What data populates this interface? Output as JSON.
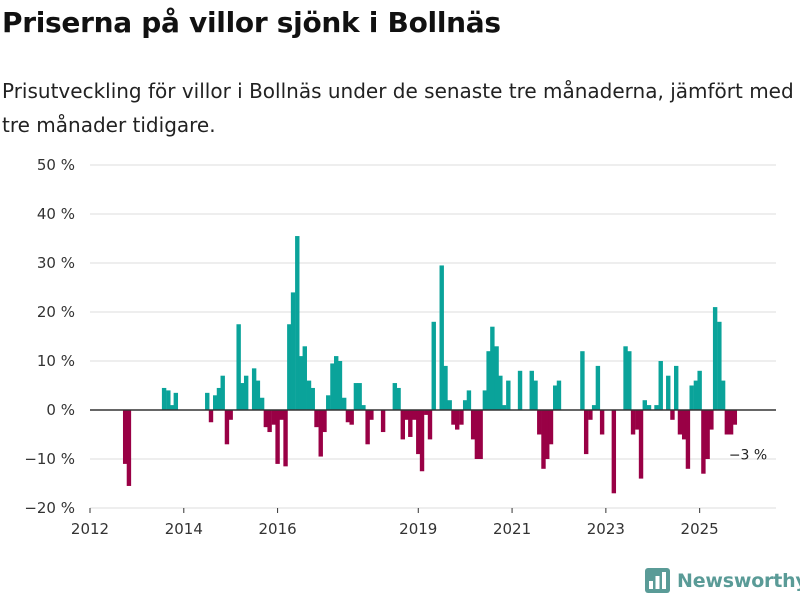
{
  "header": {
    "title": "Priserna på villor sjönk i Bollnäs",
    "subtitle": "Prisutveckling för villor i Bollnäs under de senaste tre månaderna, jämfört med tre månader tidigare."
  },
  "brand": {
    "name": "Newsworthy"
  },
  "colors": {
    "positive": "#0aa39a",
    "negative": "#990045",
    "grid": "#dddddd",
    "zero": "#333333",
    "brand": "#5a9b97"
  },
  "chart_data": {
    "type": "bar",
    "title": "Priserna på villor sjönk i Bollnäs",
    "xlabel": "",
    "ylabel": "",
    "ylim": [
      -20,
      50
    ],
    "yticks": [
      {
        "value": 50,
        "label": "50 %"
      },
      {
        "value": 40,
        "label": "40 %"
      },
      {
        "value": 30,
        "label": "30 %"
      },
      {
        "value": 20,
        "label": "20 %"
      },
      {
        "value": 10,
        "label": "10 %"
      },
      {
        "value": 0,
        "label": "0 %"
      },
      {
        "value": -10,
        "label": "−10 %"
      },
      {
        "value": -20,
        "label": "−20 %"
      }
    ],
    "xlim": [
      2012.0,
      2026.5
    ],
    "xticks": [
      {
        "value": 2012,
        "label": "2012"
      },
      {
        "value": 2014,
        "label": "2014"
      },
      {
        "value": 2016,
        "label": "2016"
      },
      {
        "value": 2019,
        "label": "2019"
      },
      {
        "value": 2021,
        "label": "2021"
      },
      {
        "value": 2023,
        "label": "2023"
      },
      {
        "value": 2025,
        "label": "2025"
      }
    ],
    "annotation": {
      "x": 2025.75,
      "value": -3,
      "label": "−3 %"
    },
    "points": [
      {
        "x": 2012.75,
        "value": -11
      },
      {
        "x": 2012.83,
        "value": -15.5
      },
      {
        "x": 2013.58,
        "value": 4.5
      },
      {
        "x": 2013.67,
        "value": 4
      },
      {
        "x": 2013.75,
        "value": 1
      },
      {
        "x": 2013.83,
        "value": 3.5
      },
      {
        "x": 2014.5,
        "value": 3.5
      },
      {
        "x": 2014.58,
        "value": -2.5
      },
      {
        "x": 2014.67,
        "value": 3
      },
      {
        "x": 2014.75,
        "value": 4.5
      },
      {
        "x": 2014.83,
        "value": 7
      },
      {
        "x": 2014.92,
        "value": -7
      },
      {
        "x": 2015.0,
        "value": -2
      },
      {
        "x": 2015.17,
        "value": 17.5
      },
      {
        "x": 2015.25,
        "value": 5.5
      },
      {
        "x": 2015.33,
        "value": 7
      },
      {
        "x": 2015.5,
        "value": 8.5
      },
      {
        "x": 2015.58,
        "value": 6
      },
      {
        "x": 2015.67,
        "value": 2.5
      },
      {
        "x": 2015.75,
        "value": -3.5
      },
      {
        "x": 2015.83,
        "value": -4.5
      },
      {
        "x": 2015.92,
        "value": -3
      },
      {
        "x": 2016.0,
        "value": -11
      },
      {
        "x": 2016.08,
        "value": -2
      },
      {
        "x": 2016.17,
        "value": -11.5
      },
      {
        "x": 2016.25,
        "value": 17.5
      },
      {
        "x": 2016.33,
        "value": 24
      },
      {
        "x": 2016.42,
        "value": 35.5
      },
      {
        "x": 2016.5,
        "value": 11
      },
      {
        "x": 2016.58,
        "value": 13
      },
      {
        "x": 2016.67,
        "value": 6
      },
      {
        "x": 2016.75,
        "value": 4.5
      },
      {
        "x": 2016.83,
        "value": -3.5
      },
      {
        "x": 2016.92,
        "value": -9.5
      },
      {
        "x": 2017.0,
        "value": -4.5
      },
      {
        "x": 2017.08,
        "value": 3
      },
      {
        "x": 2017.17,
        "value": 9.5
      },
      {
        "x": 2017.25,
        "value": 11
      },
      {
        "x": 2017.33,
        "value": 10
      },
      {
        "x": 2017.42,
        "value": 2.5
      },
      {
        "x": 2017.5,
        "value": -2.5
      },
      {
        "x": 2017.58,
        "value": -3
      },
      {
        "x": 2017.67,
        "value": 5.5
      },
      {
        "x": 2017.75,
        "value": 5.5
      },
      {
        "x": 2017.83,
        "value": 1
      },
      {
        "x": 2017.92,
        "value": -7
      },
      {
        "x": 2018.0,
        "value": -2
      },
      {
        "x": 2018.25,
        "value": -4.5
      },
      {
        "x": 2018.5,
        "value": 5.5
      },
      {
        "x": 2018.58,
        "value": 4.5
      },
      {
        "x": 2018.67,
        "value": -6
      },
      {
        "x": 2018.75,
        "value": -2
      },
      {
        "x": 2018.83,
        "value": -5.5
      },
      {
        "x": 2018.92,
        "value": -2
      },
      {
        "x": 2019.0,
        "value": -9
      },
      {
        "x": 2019.08,
        "value": -12.5
      },
      {
        "x": 2019.17,
        "value": -1
      },
      {
        "x": 2019.25,
        "value": -6
      },
      {
        "x": 2019.33,
        "value": 18
      },
      {
        "x": 2019.5,
        "value": 29.5
      },
      {
        "x": 2019.58,
        "value": 9
      },
      {
        "x": 2019.67,
        "value": 2
      },
      {
        "x": 2019.75,
        "value": -3
      },
      {
        "x": 2019.83,
        "value": -4
      },
      {
        "x": 2019.92,
        "value": -3
      },
      {
        "x": 2020.0,
        "value": 2
      },
      {
        "x": 2020.08,
        "value": 4
      },
      {
        "x": 2020.17,
        "value": -6
      },
      {
        "x": 2020.25,
        "value": -10
      },
      {
        "x": 2020.33,
        "value": -10
      },
      {
        "x": 2020.42,
        "value": 4
      },
      {
        "x": 2020.5,
        "value": 12
      },
      {
        "x": 2020.58,
        "value": 17
      },
      {
        "x": 2020.67,
        "value": 13
      },
      {
        "x": 2020.75,
        "value": 7
      },
      {
        "x": 2020.83,
        "value": 1
      },
      {
        "x": 2020.92,
        "value": 6
      },
      {
        "x": 2021.17,
        "value": 8
      },
      {
        "x": 2021.42,
        "value": 8
      },
      {
        "x": 2021.5,
        "value": 6
      },
      {
        "x": 2021.58,
        "value": -5
      },
      {
        "x": 2021.67,
        "value": -12
      },
      {
        "x": 2021.75,
        "value": -10
      },
      {
        "x": 2021.83,
        "value": -7
      },
      {
        "x": 2021.92,
        "value": 5
      },
      {
        "x": 2022.0,
        "value": 6
      },
      {
        "x": 2022.5,
        "value": 12
      },
      {
        "x": 2022.58,
        "value": -9
      },
      {
        "x": 2022.67,
        "value": -2
      },
      {
        "x": 2022.75,
        "value": 1
      },
      {
        "x": 2022.83,
        "value": 9
      },
      {
        "x": 2022.92,
        "value": -5
      },
      {
        "x": 2023.17,
        "value": -17
      },
      {
        "x": 2023.42,
        "value": 13
      },
      {
        "x": 2023.5,
        "value": 12
      },
      {
        "x": 2023.58,
        "value": -5
      },
      {
        "x": 2023.67,
        "value": -4
      },
      {
        "x": 2023.75,
        "value": -14
      },
      {
        "x": 2023.83,
        "value": 2
      },
      {
        "x": 2023.92,
        "value": 1
      },
      {
        "x": 2024.08,
        "value": 1
      },
      {
        "x": 2024.17,
        "value": 10
      },
      {
        "x": 2024.33,
        "value": 7
      },
      {
        "x": 2024.42,
        "value": -2
      },
      {
        "x": 2024.5,
        "value": 9
      },
      {
        "x": 2024.58,
        "value": -5
      },
      {
        "x": 2024.67,
        "value": -6
      },
      {
        "x": 2024.75,
        "value": -12
      },
      {
        "x": 2024.83,
        "value": 5
      },
      {
        "x": 2024.92,
        "value": 6
      },
      {
        "x": 2025.0,
        "value": 8
      },
      {
        "x": 2025.08,
        "value": -13
      },
      {
        "x": 2025.17,
        "value": -10
      },
      {
        "x": 2025.25,
        "value": -4
      },
      {
        "x": 2025.33,
        "value": 21
      },
      {
        "x": 2025.42,
        "value": 18
      },
      {
        "x": 2025.5,
        "value": 6
      },
      {
        "x": 2025.58,
        "value": -5
      },
      {
        "x": 2025.67,
        "value": -5
      },
      {
        "x": 2025.75,
        "value": -3
      }
    ]
  }
}
